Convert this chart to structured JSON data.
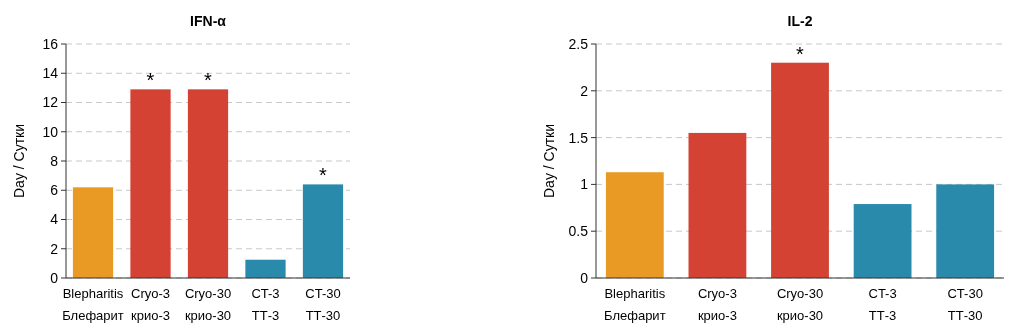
{
  "chart_data": [
    {
      "type": "bar",
      "title": "IFN-α",
      "ylabel": "Day / Сутки",
      "categories": [
        "Blepharitis\nБлефарит",
        "Cryo-3\nкрио-3",
        "Cryo-30\nкрио-30",
        "CT-3\nТТ-3",
        "CT-30\nТТ-30"
      ],
      "values": [
        6.2,
        12.9,
        12.9,
        1.25,
        6.4
      ],
      "colors": [
        "#e89a24",
        "#d44234",
        "#d44234",
        "#2a8aab",
        "#2a8aab"
      ],
      "ylim": [
        0,
        16
      ],
      "yticks": [
        0,
        2,
        4,
        6,
        8,
        10,
        12,
        14,
        16
      ],
      "grid": "y",
      "annotations": [
        {
          "text": "*",
          "x": "Cryo-3\nкрио-3",
          "y": 12.9
        },
        {
          "text": "*",
          "x": "Cryo-30\nкрио-30",
          "y": 12.9
        },
        {
          "text": "*",
          "x": "CT-30\nТТ-30",
          "y": 6.4
        }
      ]
    },
    {
      "type": "bar",
      "title": "IL-2",
      "ylabel": "Day / Сутки",
      "categories": [
        "Blepharitis\nБлефарит",
        "Cryo-3\nкрио-3",
        "Cryo-30\nкрио-30",
        "CT-3\nТТ-3",
        "CT-30\nТТ-30"
      ],
      "values": [
        1.13,
        1.55,
        2.3,
        0.79,
        1.0
      ],
      "colors": [
        "#e89a24",
        "#d44234",
        "#d44234",
        "#2a8aab",
        "#2a8aab"
      ],
      "ylim": [
        0,
        2.5
      ],
      "yticks": [
        0,
        0.5,
        1,
        1.5,
        2,
        2.5
      ],
      "grid": "y",
      "annotations": [
        {
          "text": "*",
          "x": "Cryo-30\nкрио-30",
          "y": 2.3
        }
      ]
    }
  ]
}
